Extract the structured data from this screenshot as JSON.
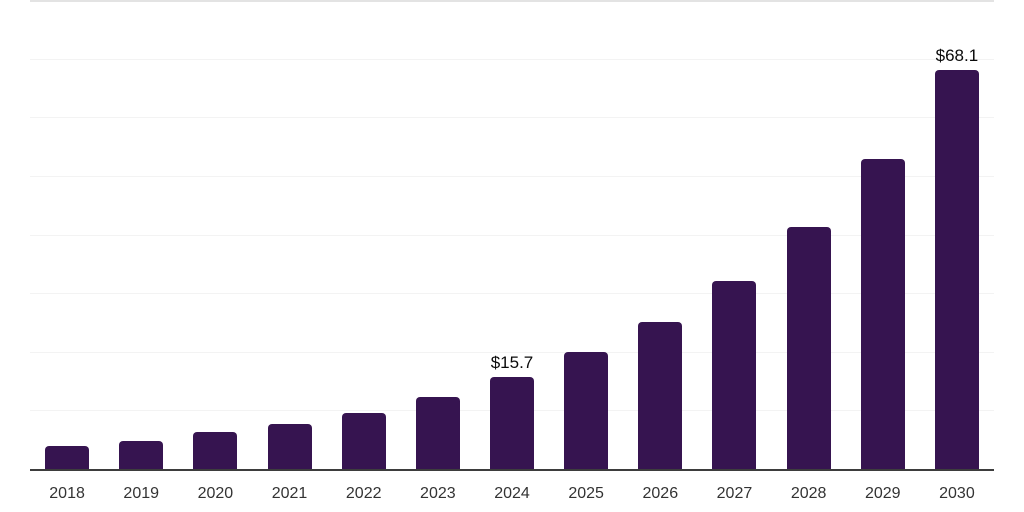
{
  "chart_data": {
    "type": "bar",
    "title": "",
    "xlabel": "",
    "ylabel": "",
    "categories": [
      "2018",
      "2019",
      "2020",
      "2021",
      "2022",
      "2023",
      "2024",
      "2025",
      "2026",
      "2027",
      "2028",
      "2029",
      "2030"
    ],
    "values": [
      3.9,
      4.8,
      6.3,
      7.6,
      9.6,
      12.2,
      15.7,
      20.0,
      25.1,
      32.1,
      41.2,
      52.8,
      68.1
    ],
    "data_labels": {
      "2024": "$15.7",
      "2030": "$68.1"
    },
    "currency_prefix": "$",
    "ylim": [
      0,
      80
    ],
    "grid_step": 10,
    "grid_on": true,
    "legend": "none",
    "bar_color": "#361450",
    "axis_line_color": "#3d3d3d",
    "gridline_color": "#f3f3f3",
    "top_gridline_color": "#e3e3e3",
    "x_label_color": "#333333",
    "data_label_color": "#0a0a0a",
    "background_color": "#ffffff"
  }
}
